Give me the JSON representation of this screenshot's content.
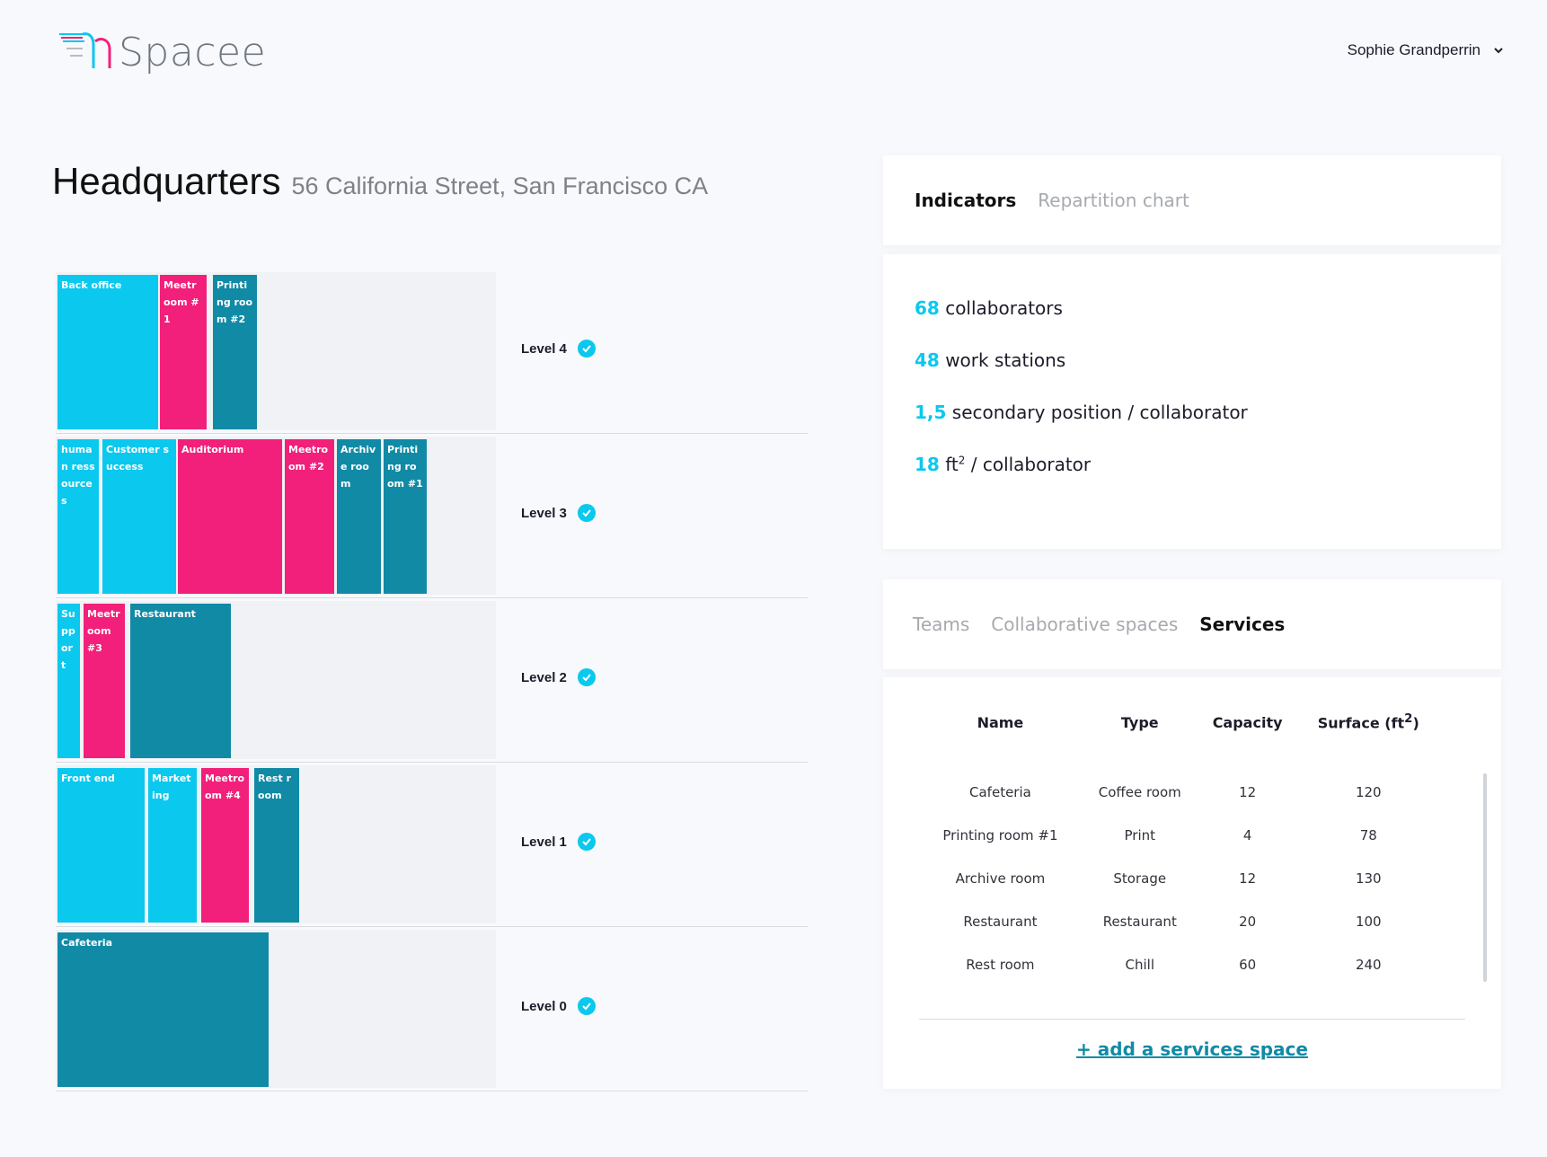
{
  "brand": {
    "name": "Spacee",
    "icon": "spacee-logo"
  },
  "user": {
    "name": "Sophie Grandperrin",
    "icon": "chevron-down-icon"
  },
  "building": {
    "name": "Headquarters",
    "address": "56 California Street, San Francisco CA"
  },
  "colors": {
    "cyan": "#0bc8ee",
    "pink": "#f2207a",
    "teal": "#118aa6"
  },
  "levels": [
    {
      "label": "Level 4",
      "rooms": [
        {
          "name": "Back office",
          "color": "cyan"
        },
        {
          "name": "Meetroom #1",
          "color": "pink"
        },
        {
          "name": "Printing room #2",
          "color": "teal"
        }
      ]
    },
    {
      "label": "Level 3",
      "rooms": [
        {
          "name": "human ressources",
          "color": "cyan"
        },
        {
          "name": "Customer success",
          "color": "cyan"
        },
        {
          "name": "Auditorium",
          "color": "pink"
        },
        {
          "name": "Meetroom #2",
          "color": "pink"
        },
        {
          "name": "Archive room",
          "color": "teal"
        },
        {
          "name": "Printing room #1",
          "color": "teal"
        }
      ]
    },
    {
      "label": "Level 2",
      "rooms": [
        {
          "name": "Support",
          "color": "cyan"
        },
        {
          "name": "Meetroom #3",
          "color": "pink"
        },
        {
          "name": "Restaurant",
          "color": "teal"
        }
      ]
    },
    {
      "label": "Level 1",
      "rooms": [
        {
          "name": "Front end",
          "color": "cyan"
        },
        {
          "name": "Marketing",
          "color": "cyan"
        },
        {
          "name": "Meetroom #4",
          "color": "pink"
        },
        {
          "name": "Rest room",
          "color": "teal"
        }
      ]
    },
    {
      "label": "Level 0",
      "rooms": [
        {
          "name": "Cafeteria",
          "color": "teal"
        }
      ]
    }
  ],
  "indicator_tabs": {
    "indicators": "Indicators",
    "repartition": "Repartition chart",
    "active": "indicators"
  },
  "indicators": [
    {
      "value": "68",
      "text": "collaborators"
    },
    {
      "value": "48",
      "text": "work stations"
    },
    {
      "value": "1,5",
      "text": "secondary position / collaborator"
    },
    {
      "value": "18",
      "text_pre": "ft",
      "sup": "2",
      "text": "/ collaborator"
    }
  ],
  "space_tabs": {
    "teams": "Teams",
    "collaborative": "Collaborative spaces",
    "services": "Services",
    "active": "services"
  },
  "services_table": {
    "headers": {
      "name": "Name",
      "type": "Type",
      "capacity": "Capacity",
      "surface": "Surface (ft",
      "surface_sup": "2",
      "surface_close": ")"
    },
    "rows": [
      {
        "name": "Cafeteria",
        "type": "Coffee room",
        "capacity": "12",
        "surface": "120"
      },
      {
        "name": "Printing room #1",
        "type": "Print",
        "capacity": "4",
        "surface": "78"
      },
      {
        "name": "Archive room",
        "type": "Storage",
        "capacity": "12",
        "surface": "130"
      },
      {
        "name": "Restaurant",
        "type": "Restaurant",
        "capacity": "20",
        "surface": "100"
      },
      {
        "name": "Rest room",
        "type": "Chill",
        "capacity": "60",
        "surface": "240"
      }
    ],
    "add_label": "+ add a services space"
  }
}
